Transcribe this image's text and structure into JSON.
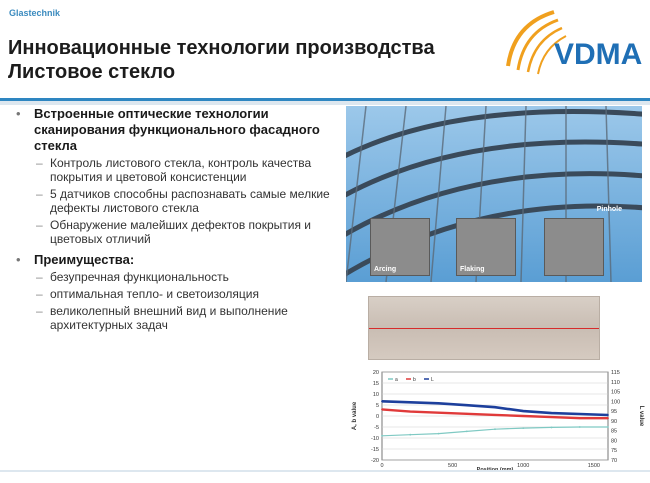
{
  "header": {
    "brand": "Glastechnik",
    "title_line1": "Инновационные технологии производства",
    "title_line2": "Листовое стекло",
    "logo_text": "VDMA"
  },
  "content": {
    "sections": [
      {
        "heading": "Встроенные оптические технологии сканирования функционального фасадного стекла",
        "items": [
          "Контроль листового стекла, контроль качества покрытия и цветовой консистенции",
          "5 датчиков способны распознавать самые мелкие дефекты листового стекла",
          "Обнаружение малейших дефектов покрытия и цветовых отличий"
        ]
      },
      {
        "heading": "Преимущества:",
        "items": [
          "безупречная функциональность",
          "оптимальная тепло- и светоизоляция",
          "великолепный внешний вид и выполнение архитектурных задач"
        ]
      }
    ]
  },
  "images": {
    "photo_label": "Pinhole",
    "thumbnails": [
      "Arcing",
      "Flaking",
      ""
    ]
  },
  "colors": {
    "accent": "#2e86c1",
    "logo_blue": "#1f6fb5",
    "logo_orange": "#f0a01e",
    "series_blue": "#1d3f9c",
    "series_red": "#e03a3a",
    "series_teal": "#7fc9c3"
  },
  "chart_data": {
    "type": "line",
    "xlabel": "Position (mm)",
    "ylabel": "A, b value",
    "y2label": "L value",
    "xlim": [
      0,
      1600
    ],
    "ylim": [
      -20,
      20
    ],
    "y2lim": [
      70,
      115
    ],
    "x_ticks": [
      "0",
      "500",
      "1000",
      "1500"
    ],
    "y_ticks": [
      "20",
      "15",
      "10",
      "5",
      "0",
      "-5",
      "-10",
      "-15",
      "-20"
    ],
    "y2_ticks": [
      "115",
      "110",
      "105",
      "100",
      "95",
      "90",
      "85",
      "80",
      "75",
      "70"
    ],
    "legend": [
      "a",
      "b",
      "L"
    ],
    "series": [
      {
        "name": "L",
        "axis": "y2",
        "x": [
          0,
          200,
          400,
          600,
          800,
          1000,
          1200,
          1400,
          1600
        ],
        "values": [
          100,
          99.5,
          99,
          98,
          97,
          95,
          94,
          93.5,
          93
        ]
      },
      {
        "name": "b",
        "axis": "y",
        "x": [
          0,
          200,
          400,
          600,
          800,
          1000,
          1200,
          1400,
          1600
        ],
        "values": [
          3,
          2,
          1.5,
          1,
          0.5,
          0,
          -0.5,
          -1,
          -1
        ]
      },
      {
        "name": "a",
        "axis": "y",
        "x": [
          0,
          200,
          400,
          600,
          800,
          1000,
          1200,
          1400,
          1600
        ],
        "values": [
          -9,
          -8.5,
          -8,
          -7,
          -6,
          -5.5,
          -5.2,
          -5,
          -5
        ]
      }
    ]
  }
}
